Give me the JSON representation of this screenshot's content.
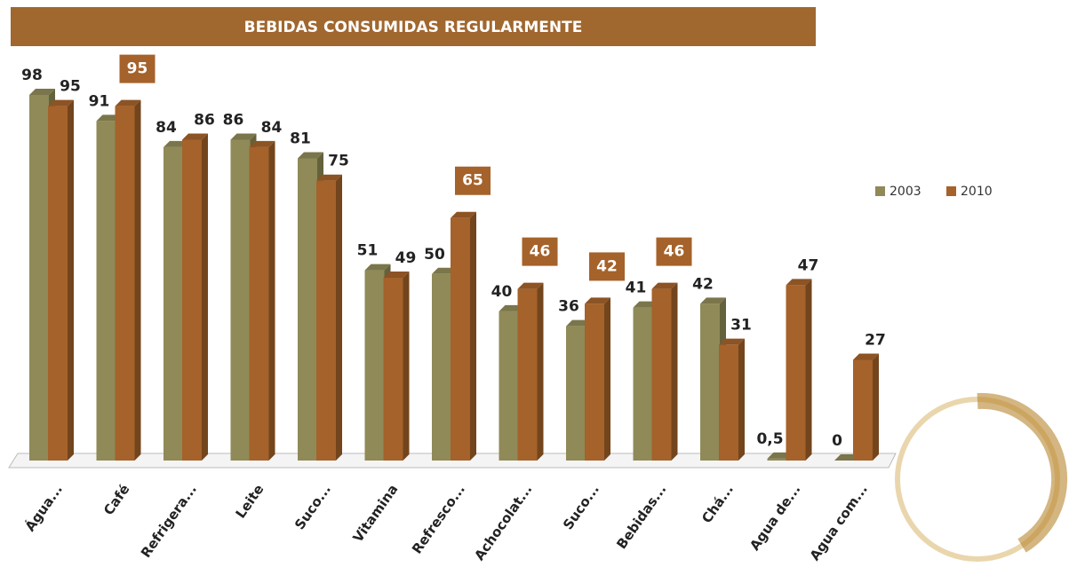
{
  "chart_data": {
    "type": "bar3d",
    "title": "BEBIDAS CONSUMIDAS REGULARMENTE",
    "categories": [
      "Água...",
      "Café",
      "Refrigera...",
      "Leite",
      "Suco...",
      "Vitamina",
      "Refresco...",
      "Achocolat...",
      "Suco...",
      "Bebidas...",
      "Chá...",
      "Agua de...",
      "Agua com..."
    ],
    "series": [
      {
        "name": "2003",
        "color": "#8f8a57",
        "values": [
          98,
          91,
          84,
          86,
          81,
          51,
          50,
          40,
          36,
          41,
          42,
          0.5,
          0
        ],
        "value_labels": [
          "98",
          "91",
          "84",
          "86",
          "81",
          "51",
          "50",
          "40",
          "36",
          "41",
          "42",
          "0,5",
          "0"
        ]
      },
      {
        "name": "2010",
        "color": "#a5622a",
        "values": [
          95,
          95,
          86,
          84,
          75,
          49,
          65,
          46,
          42,
          46,
          31,
          47,
          27
        ],
        "boxed_labels": [
          false,
          true,
          false,
          false,
          false,
          false,
          true,
          true,
          true,
          true,
          false,
          false,
          false
        ]
      }
    ],
    "legend": "right"
  }
}
